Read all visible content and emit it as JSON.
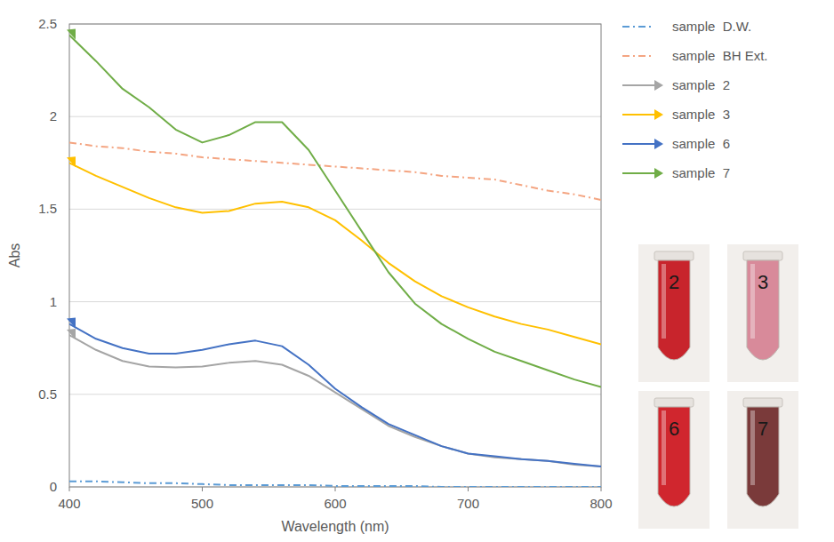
{
  "chart_data": {
    "type": "line",
    "x_label": "Wavelength (nm)",
    "y_label": "Abs",
    "x": [
      400,
      420,
      440,
      460,
      480,
      500,
      520,
      540,
      560,
      580,
      600,
      620,
      640,
      660,
      680,
      700,
      720,
      740,
      760,
      780,
      800
    ],
    "xlim": [
      400,
      800
    ],
    "xticks": [
      400,
      500,
      600,
      700,
      800
    ],
    "ylim": [
      0,
      2.5
    ],
    "yticks": [
      0,
      0.5,
      1,
      1.5,
      2,
      2.5
    ],
    "grid": true,
    "legend": "right",
    "series": [
      {
        "name": "sample  D.W.",
        "color": "#5b9bd5",
        "line_style": "dashdot",
        "marker": "none",
        "values": [
          0.03,
          0.03,
          0.025,
          0.02,
          0.02,
          0.015,
          0.01,
          0.01,
          0.01,
          0.01,
          0.005,
          0.005,
          0.005,
          0.005,
          0.0,
          0.0,
          0.0,
          0.0,
          0.0,
          0.0,
          0.0
        ]
      },
      {
        "name": "sample  BH Ext.",
        "color": "#f4a582",
        "line_style": "dashdot",
        "marker": "none",
        "values": [
          1.86,
          1.84,
          1.83,
          1.81,
          1.8,
          1.78,
          1.77,
          1.76,
          1.75,
          1.74,
          1.73,
          1.72,
          1.71,
          1.7,
          1.68,
          1.67,
          1.66,
          1.63,
          1.6,
          1.58,
          1.55
        ]
      },
      {
        "name": "sample  2",
        "color": "#a5a5a5",
        "line_style": "solid",
        "marker": "arrow",
        "values": [
          0.82,
          0.74,
          0.68,
          0.65,
          0.645,
          0.65,
          0.67,
          0.68,
          0.66,
          0.6,
          0.51,
          0.42,
          0.33,
          0.27,
          0.22,
          0.18,
          0.16,
          0.15,
          0.14,
          0.12,
          0.11
        ]
      },
      {
        "name": "sample  3",
        "color": "#ffc000",
        "line_style": "solid",
        "marker": "arrow",
        "values": [
          1.75,
          1.68,
          1.62,
          1.56,
          1.51,
          1.48,
          1.49,
          1.53,
          1.54,
          1.51,
          1.44,
          1.33,
          1.21,
          1.11,
          1.03,
          0.97,
          0.92,
          0.88,
          0.85,
          0.81,
          0.77
        ]
      },
      {
        "name": "sample  6",
        "color": "#4472c4",
        "line_style": "solid",
        "marker": "arrow",
        "values": [
          0.88,
          0.8,
          0.75,
          0.72,
          0.72,
          0.74,
          0.77,
          0.79,
          0.76,
          0.66,
          0.53,
          0.43,
          0.34,
          0.28,
          0.22,
          0.18,
          0.165,
          0.15,
          0.14,
          0.125,
          0.11
        ]
      },
      {
        "name": "sample  7",
        "color": "#70ad47",
        "line_style": "solid",
        "marker": "arrow",
        "values": [
          2.44,
          2.3,
          2.15,
          2.05,
          1.93,
          1.86,
          1.9,
          1.97,
          1.97,
          1.82,
          1.6,
          1.38,
          1.16,
          0.99,
          0.88,
          0.8,
          0.73,
          0.68,
          0.63,
          0.58,
          0.54
        ]
      }
    ],
    "annotations": [
      "2",
      "3",
      "6",
      "7"
    ]
  }
}
